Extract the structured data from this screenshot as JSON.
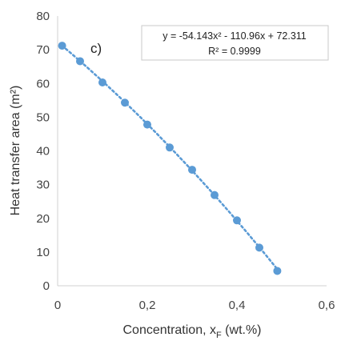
{
  "chart_data": {
    "type": "scatter",
    "panel_label": "c)",
    "xlabel_main": "Concentration, x",
    "xlabel_sub": "F",
    "xlabel_tail": " (wt.%)",
    "ylabel": "Heat transfer area (m²)",
    "xlim": [
      0,
      0.6
    ],
    "ylim": [
      0,
      80
    ],
    "x_ticks": [
      {
        "value": 0,
        "label": "0"
      },
      {
        "value": 0.2,
        "label": "0,2"
      },
      {
        "value": 0.4,
        "label": "0,4"
      },
      {
        "value": 0.6,
        "label": "0,6"
      }
    ],
    "y_ticks": [
      {
        "value": 0,
        "label": "0"
      },
      {
        "value": 10,
        "label": "10"
      },
      {
        "value": 20,
        "label": "20"
      },
      {
        "value": 30,
        "label": "30"
      },
      {
        "value": 40,
        "label": "40"
      },
      {
        "value": 50,
        "label": "50"
      },
      {
        "value": 60,
        "label": "60"
      },
      {
        "value": 70,
        "label": "70"
      },
      {
        "value": 80,
        "label": "80"
      }
    ],
    "grid": false,
    "series": [
      {
        "color": "#5b9bd5",
        "points": [
          {
            "x": 0.01,
            "y": 71.2
          },
          {
            "x": 0.05,
            "y": 66.6
          },
          {
            "x": 0.1,
            "y": 60.3
          },
          {
            "x": 0.15,
            "y": 54.3
          },
          {
            "x": 0.2,
            "y": 47.8
          },
          {
            "x": 0.25,
            "y": 41.0
          },
          {
            "x": 0.3,
            "y": 34.4
          },
          {
            "x": 0.35,
            "y": 26.9
          },
          {
            "x": 0.4,
            "y": 19.4
          },
          {
            "x": 0.45,
            "y": 11.3
          },
          {
            "x": 0.49,
            "y": 4.4
          }
        ]
      }
    ],
    "trendline": {
      "type": "polynomial",
      "coefficients": [
        -54.143,
        -110.96,
        72.311
      ],
      "x_range": [
        0.01,
        0.49
      ],
      "color": "#5b9bd5",
      "equation_text": "y = -54.143x² - 110.96x + 72.311",
      "r2_text": "R² = 0.9999"
    }
  }
}
